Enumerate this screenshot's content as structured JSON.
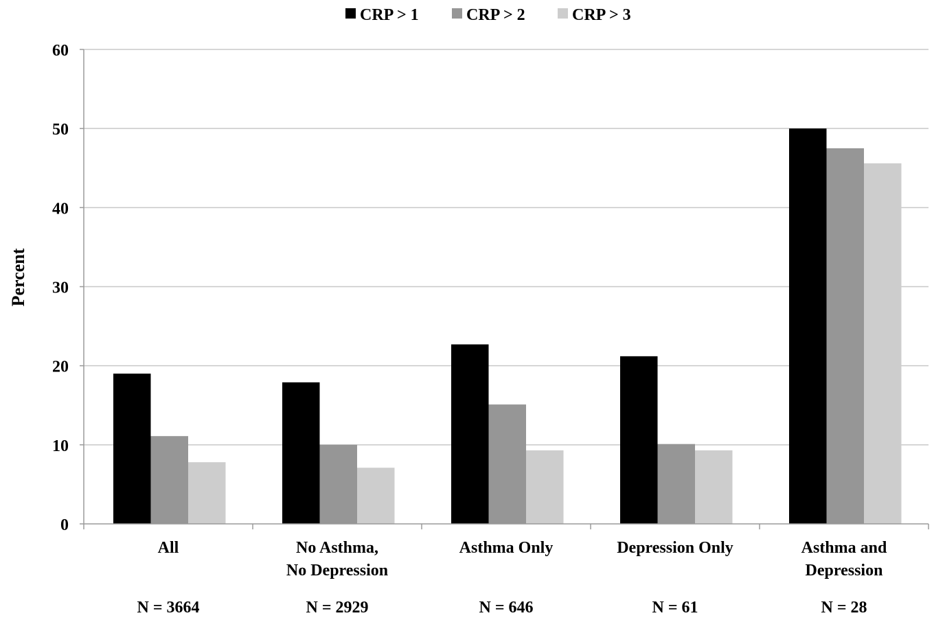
{
  "chart_data": {
    "type": "bar",
    "title": "",
    "xlabel": "",
    "ylabel": "Percent",
    "ylim": [
      0,
      60
    ],
    "yticks": [
      0,
      10,
      20,
      30,
      40,
      50,
      60
    ],
    "grid": true,
    "legend_position": "top-center",
    "categories": [
      {
        "lines": [
          "All"
        ],
        "n": "N = 3664"
      },
      {
        "lines": [
          "No Asthma,",
          "No Depression"
        ],
        "n": "N = 2929"
      },
      {
        "lines": [
          "Asthma Only"
        ],
        "n": "N = 646"
      },
      {
        "lines": [
          "Depression Only"
        ],
        "n": "N = 61"
      },
      {
        "lines": [
          "Asthma and",
          "Depression"
        ],
        "n": "N = 28"
      }
    ],
    "series": [
      {
        "name": "CRP > 1",
        "color": "#000000",
        "values": [
          19.0,
          17.9,
          22.7,
          21.2,
          50.0
        ]
      },
      {
        "name": "CRP > 2",
        "color": "#969696",
        "values": [
          11.1,
          10.0,
          15.1,
          10.1,
          47.5
        ]
      },
      {
        "name": "CRP > 3",
        "color": "#cdcdcd",
        "values": [
          7.8,
          7.1,
          9.3,
          9.3,
          45.6
        ]
      }
    ]
  }
}
